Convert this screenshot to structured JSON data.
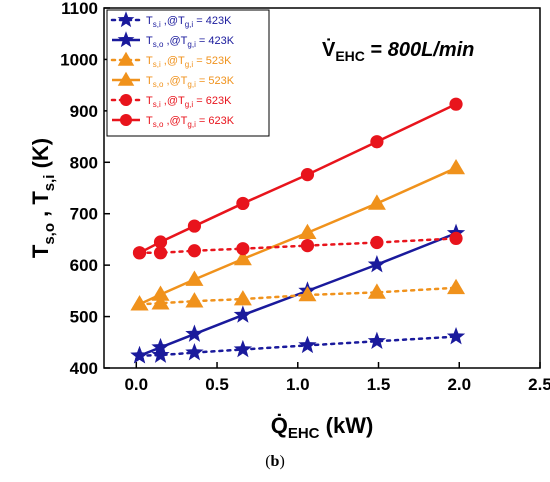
{
  "chart_data": {
    "type": "line",
    "x_axis_label": "Q̇",
    "x_axis_subscript": "EHC",
    "x_axis_unit": " (kW)",
    "y_axis_label_part1": "T",
    "y_axis_sub1": "s,o",
    "y_axis_label_sep": " , T",
    "y_axis_sub2": "s,i",
    "y_axis_unit": " (K)",
    "xlim": [
      -0.2,
      2.5
    ],
    "ylim": [
      400,
      1100
    ],
    "x_ticks": [
      "0.0",
      "0.5",
      "1.0",
      "1.5",
      "2.0",
      "2.5"
    ],
    "y_ticks": [
      "400",
      "500",
      "600",
      "700",
      "800",
      "900",
      "1000",
      "1100"
    ],
    "x_tick_values": [
      0.0,
      0.5,
      1.0,
      1.5,
      2.0,
      2.5
    ],
    "y_tick_values": [
      400,
      500,
      600,
      700,
      800,
      900,
      1000,
      1100
    ],
    "annotation": {
      "prefix": "V̇",
      "subscript": "EHC",
      "equals": " = ",
      "value": "800L/min"
    },
    "series": [
      {
        "name": "T_s,i ,@T_g,i = 423K",
        "label_main": "T",
        "label_sub": "s,i",
        "label_mid": " ,@T",
        "label_sub2": "g,i",
        "label_end": " = 423K",
        "color": "#1a1a9c",
        "marker": "star",
        "dashed": true,
        "x": [
          0.02,
          0.15,
          0.36,
          0.66,
          1.06,
          1.49,
          1.98
        ],
        "y": [
          424,
          425,
          430,
          436,
          444,
          452,
          461
        ]
      },
      {
        "name": "T_s,o ,@T_g,i = 423K",
        "label_main": "T",
        "label_sub": "s,o",
        "label_mid": " ,@T",
        "label_sub2": "g,i",
        "label_end": " = 423K",
        "color": "#1a1a9c",
        "marker": "star",
        "dashed": false,
        "x": [
          0.02,
          0.15,
          0.36,
          0.66,
          1.06,
          1.49,
          1.98
        ],
        "y": [
          424,
          440,
          466,
          503,
          550,
          601,
          662
        ]
      },
      {
        "name": "T_s,i ,@T_g,i = 523K",
        "label_main": "T",
        "label_sub": "s,i",
        "label_mid": " ,@T",
        "label_sub2": "g,i",
        "label_end": " = 523K",
        "color": "#f0921c",
        "marker": "triangle",
        "dashed": true,
        "x": [
          0.02,
          0.15,
          0.36,
          0.66,
          1.06,
          1.49,
          1.98
        ],
        "y": [
          524,
          526,
          530,
          534,
          542,
          547,
          556
        ]
      },
      {
        "name": "T_s,o ,@T_g,i = 523K",
        "label_main": "T",
        "label_sub": "s,o",
        "label_mid": " ,@T",
        "label_sub2": "g,i",
        "label_end": " = 523K",
        "color": "#f0921c",
        "marker": "triangle",
        "dashed": false,
        "x": [
          0.02,
          0.15,
          0.36,
          0.66,
          1.06,
          1.49,
          1.98
        ],
        "y": [
          524,
          543,
          572,
          612,
          663,
          720,
          789
        ]
      },
      {
        "name": "T_s,i ,@T_g,i = 623K",
        "label_main": "T",
        "label_sub": "s,i",
        "label_mid": " ,@T",
        "label_sub2": "g,i",
        "label_end": " = 623K",
        "color": "#e8141c",
        "marker": "circle",
        "dashed": true,
        "x": [
          0.02,
          0.15,
          0.36,
          0.66,
          1.06,
          1.49,
          1.98
        ],
        "y": [
          624,
          624,
          628,
          632,
          638,
          644,
          652
        ]
      },
      {
        "name": "T_s,o ,@T_g,i = 623K",
        "label_main": "T",
        "label_sub": "s,o",
        "label_mid": " ,@T",
        "label_sub2": "g,i",
        "label_end": " = 623K",
        "color": "#e8141c",
        "marker": "circle",
        "dashed": false,
        "x": [
          0.02,
          0.15,
          0.36,
          0.66,
          1.06,
          1.49,
          1.98
        ],
        "y": [
          624,
          645,
          676,
          720,
          776,
          840,
          913
        ]
      }
    ]
  },
  "caption": {
    "open": "(",
    "letter": "b",
    "close": ")"
  }
}
